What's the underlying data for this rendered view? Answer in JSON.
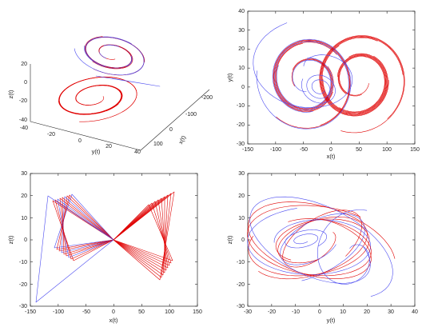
{
  "colors": {
    "series_a": "#e00000",
    "series_b": "#4a4af0",
    "axes": "#222222"
  },
  "chart_data": [
    {
      "type": "line",
      "projection": "3d",
      "xlabel": "x(t)",
      "ylabel": "y(t)",
      "zlabel": "z(t)",
      "y_ticks": [
        "-40",
        "-20",
        "0",
        "20",
        "40"
      ],
      "x_ticks": [
        "100",
        "0",
        "-100",
        "-200"
      ],
      "z_ticks": [
        "20",
        "0",
        "-20",
        "-40"
      ],
      "series_colors": [
        "#e00000",
        "#4a4af0"
      ]
    },
    {
      "type": "line",
      "xlabel": "x(t)",
      "ylabel": "y(t)",
      "xlim": [
        -150,
        150
      ],
      "ylim": [
        -30,
        40
      ],
      "x_ticks": [
        "-150",
        "-100",
        "-50",
        "0",
        "50",
        "100",
        "150"
      ],
      "y_ticks": [
        "-30",
        "-20",
        "-10",
        "0",
        "10",
        "20",
        "30",
        "40"
      ],
      "series_colors": [
        "#e00000",
        "#4a4af0"
      ]
    },
    {
      "type": "line",
      "xlabel": "x(t)",
      "ylabel": "z(t)",
      "xlim": [
        -150,
        150
      ],
      "ylim": [
        -30,
        30
      ],
      "x_ticks": [
        "-150",
        "-100",
        "-50",
        "0",
        "50",
        "100",
        "150"
      ],
      "y_ticks": [
        "-30",
        "-20",
        "-10",
        "0",
        "10",
        "20",
        "30"
      ],
      "series_colors": [
        "#e00000",
        "#4a4af0"
      ]
    },
    {
      "type": "line",
      "xlabel": "y(t)",
      "ylabel": "z(t)",
      "xlim": [
        -30,
        40
      ],
      "ylim": [
        -30,
        30
      ],
      "x_ticks": [
        "-30",
        "-20",
        "-10",
        "0",
        "10",
        "20",
        "30",
        "40"
      ],
      "y_ticks": [
        "-30",
        "-20",
        "-10",
        "0",
        "10",
        "20",
        "30"
      ],
      "series_colors": [
        "#e00000",
        "#4a4af0"
      ]
    }
  ]
}
